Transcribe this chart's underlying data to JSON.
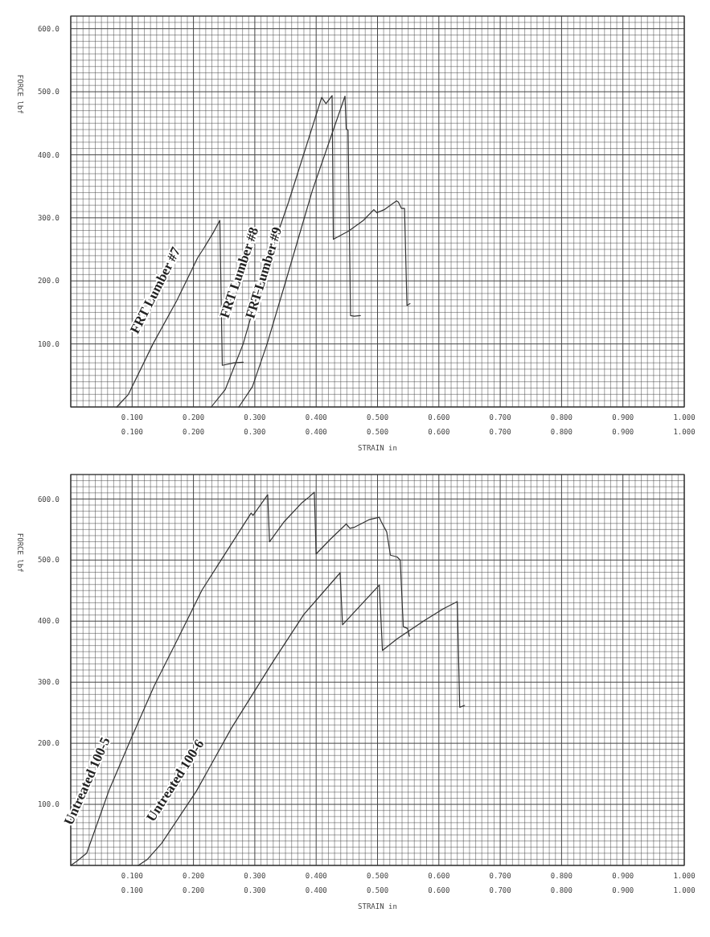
{
  "chart_data": [
    {
      "type": "line",
      "ylabel": "FORCE lbf",
      "xlabel": "STRAIN in",
      "xlim": [
        0,
        1
      ],
      "ylim": [
        0,
        620
      ],
      "grid": true,
      "line_style": "solid",
      "yticks": [
        {
          "value": 100,
          "label": "100.0"
        },
        {
          "value": 200,
          "label": "200.0"
        },
        {
          "value": 300,
          "label": "300.0"
        },
        {
          "value": 400,
          "label": "400.0"
        },
        {
          "value": 500,
          "label": "500.0"
        },
        {
          "value": 600,
          "label": "600.0"
        }
      ],
      "xticks": [
        {
          "value": 0.1,
          "label": "0.100"
        },
        {
          "value": 0.2,
          "label": "0.200"
        },
        {
          "value": 0.3,
          "label": "0.300"
        },
        {
          "value": 0.4,
          "label": "0.400"
        },
        {
          "value": 0.5,
          "label": "0.500"
        },
        {
          "value": 0.6,
          "label": "0.600"
        },
        {
          "value": 0.7,
          "label": "0.700"
        },
        {
          "value": 0.8,
          "label": "0.800"
        },
        {
          "value": 0.9,
          "label": "0.900"
        },
        {
          "value": 1,
          "label": "1.000"
        }
      ],
      "x2lim": [
        0,
        1
      ],
      "x2ticks": [
        {
          "value": 0.1,
          "label": "0.100"
        },
        {
          "value": 0.2,
          "label": "0.200"
        },
        {
          "value": 0.3,
          "label": "0.300"
        },
        {
          "value": 0.4,
          "label": "0.400"
        },
        {
          "value": 0.5,
          "label": "0.500"
        },
        {
          "value": 0.6,
          "label": "0.600"
        },
        {
          "value": 0.7,
          "label": "0.700"
        },
        {
          "value": 0.8,
          "label": "0.800"
        },
        {
          "value": 0.9,
          "label": "0.900"
        },
        {
          "value": 1,
          "label": "1.000"
        }
      ],
      "series": [
        {
          "name": "FRT Lumber #7",
          "color": "#333333",
          "x": [
            0.075,
            0.094,
            0.134,
            0.173,
            0.207,
            0.217,
            0.232,
            0.243,
            0.247,
            0.266,
            0.281
          ],
          "values": [
            0,
            20,
            100,
            169,
            237,
            252,
            276,
            296,
            66,
            70,
            71
          ]
        },
        {
          "name": "FRT Lumber #8",
          "color": "#333333",
          "x": [
            0.229,
            0.252,
            0.281,
            0.31,
            0.355,
            0.409,
            0.416,
            0.426,
            0.428,
            0.453,
            0.477,
            0.494,
            0.499,
            0.511,
            0.531,
            0.534,
            0.539,
            0.544,
            0.548,
            0.553
          ],
          "values": [
            0,
            28,
            100,
            198,
            325,
            491,
            481,
            494,
            266,
            279,
            296,
            313,
            308,
            313,
            327,
            325,
            315,
            315,
            161,
            164
          ]
        },
        {
          "name": "FRT Lumber #9",
          "color": "#333333",
          "x": [
            0.274,
            0.296,
            0.32,
            0.35,
            0.394,
            0.447,
            0.449,
            0.452,
            0.456,
            0.462,
            0.472
          ],
          "values": [
            0,
            32,
            100,
            198,
            344,
            493,
            441,
            439,
            145,
            144,
            145
          ]
        }
      ]
    },
    {
      "type": "line",
      "ylabel": "FORCE lbf",
      "xlabel": "STRAIN in",
      "xlim": [
        0,
        1
      ],
      "ylim": [
        0,
        640
      ],
      "grid": true,
      "line_style": "solid",
      "yticks": [
        {
          "value": 100,
          "label": "100.0"
        },
        {
          "value": 200,
          "label": "200.0"
        },
        {
          "value": 300,
          "label": "300.0"
        },
        {
          "value": 400,
          "label": "400.0"
        },
        {
          "value": 500,
          "label": "500.0"
        },
        {
          "value": 600,
          "label": "600.0"
        }
      ],
      "xticks": [
        {
          "value": 0.1,
          "label": "0.100"
        },
        {
          "value": 0.2,
          "label": "0.200"
        },
        {
          "value": 0.3,
          "label": "0.300"
        },
        {
          "value": 0.4,
          "label": "0.400"
        },
        {
          "value": 0.5,
          "label": "0.500"
        },
        {
          "value": 0.6,
          "label": "0.600"
        },
        {
          "value": 0.7,
          "label": "0.700"
        },
        {
          "value": 0.8,
          "label": "0.800"
        },
        {
          "value": 0.9,
          "label": "0.900"
        },
        {
          "value": 1,
          "label": "1.000"
        }
      ],
      "x2lim": [
        0,
        1
      ],
      "x2ticks": [
        {
          "value": 0.1,
          "label": "0.100"
        },
        {
          "value": 0.2,
          "label": "0.200"
        },
        {
          "value": 0.3,
          "label": "0.300"
        },
        {
          "value": 0.4,
          "label": "0.400"
        },
        {
          "value": 0.5,
          "label": "0.500"
        },
        {
          "value": 0.6,
          "label": "0.600"
        },
        {
          "value": 0.7,
          "label": "0.700"
        },
        {
          "value": 0.8,
          "label": "0.800"
        },
        {
          "value": 0.9,
          "label": "0.900"
        },
        {
          "value": 1,
          "label": "1.000"
        }
      ],
      "series": [
        {
          "name": "Untreated 100-5",
          "color": "#333333",
          "x": [
            0,
            0.01,
            0.026,
            0.062,
            0.096,
            0.136,
            0.176,
            0.214,
            0.245,
            0.294,
            0.297,
            0.321,
            0.324,
            0.348,
            0.377,
            0.388,
            0.397,
            0.4,
            0.423,
            0.449,
            0.455,
            0.463,
            0.486,
            0.503,
            0.506,
            0.515,
            0.521,
            0.532,
            0.537,
            0.542,
            0.549,
            0.552
          ],
          "values": [
            0,
            7,
            20,
            122,
            202,
            294,
            374,
            451,
            500,
            577,
            573,
            607,
            530,
            563,
            594,
            603,
            611,
            510,
            534,
            559,
            552,
            554,
            566,
            570,
            563,
            546,
            508,
            505,
            500,
            391,
            388,
            375
          ]
        },
        {
          "name": "Untreated 100-6",
          "color": "#333333",
          "x": [
            0.11,
            0.125,
            0.148,
            0.205,
            0.262,
            0.328,
            0.38,
            0.439,
            0.443,
            0.503,
            0.508,
            0.532,
            0.578,
            0.607,
            0.63,
            0.634,
            0.642
          ],
          "values": [
            0,
            10,
            36,
            122,
            225,
            331,
            411,
            479,
            394,
            459,
            352,
            371,
            402,
            420,
            432,
            259,
            262
          ]
        }
      ]
    }
  ]
}
